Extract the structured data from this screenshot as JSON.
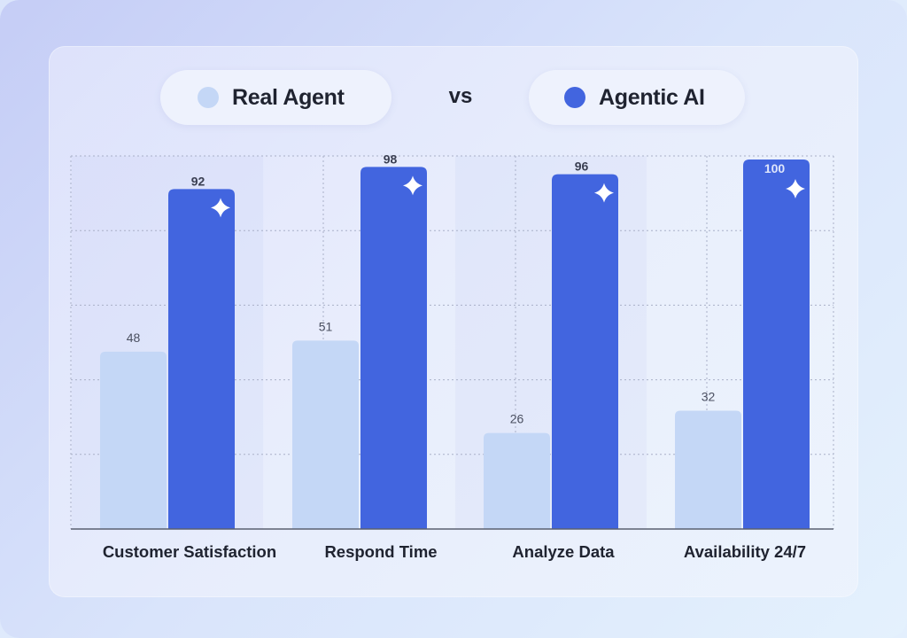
{
  "legend": {
    "real_label": "Real Agent",
    "vs_label": "vs",
    "ai_label": "Agentic AI"
  },
  "colors": {
    "real_agent": "#c4d7f6",
    "agentic_ai": "#4265df",
    "text": "#1f2330",
    "sparkle": "#ffffff"
  },
  "chart_data": {
    "type": "bar",
    "title": "",
    "xlabel": "",
    "ylabel": "",
    "ylim": [
      0,
      100
    ],
    "grid": true,
    "legend_placement": "top",
    "categories": [
      "Customer Satisfaction",
      "Respond Time",
      "Analyze Data",
      "Availability 24/7"
    ],
    "series": [
      {
        "name": "Real Agent",
        "values": [
          48,
          51,
          26,
          32
        ]
      },
      {
        "name": "Agentic AI",
        "values": [
          92,
          98,
          96,
          100
        ]
      }
    ]
  }
}
